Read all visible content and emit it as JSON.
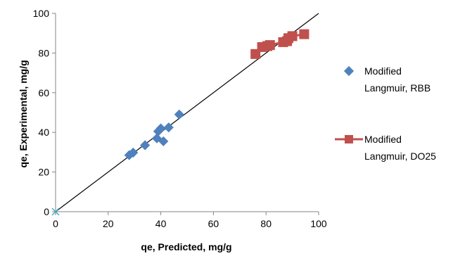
{
  "chart_data": {
    "type": "scatter",
    "xlabel": "qe, Predicted, mg/g",
    "ylabel": "qe, Experimental, mg/g",
    "xlim": [
      0,
      100
    ],
    "ylim": [
      0,
      100
    ],
    "xticks": [
      0,
      20,
      40,
      60,
      80,
      100
    ],
    "yticks": [
      0,
      20,
      40,
      60,
      80,
      100
    ],
    "grid": false,
    "legend_position": "right",
    "reference_line": {
      "x": [
        0,
        100
      ],
      "y": [
        0,
        100
      ],
      "color": "#000000"
    },
    "origin_marker": {
      "x": 0,
      "y": 0,
      "color": "#4bacc6"
    },
    "series": [
      {
        "name_lines": [
          "Modified",
          "Langmuir, RBB"
        ],
        "marker": "diamond",
        "color": "#4f81bd",
        "line": false,
        "points": [
          [
            28,
            28.5
          ],
          [
            29.5,
            29.8
          ],
          [
            34,
            33.5
          ],
          [
            38.5,
            37
          ],
          [
            39,
            40.5
          ],
          [
            40,
            42
          ],
          [
            41,
            35.5
          ],
          [
            43,
            42.5
          ],
          [
            47,
            49
          ]
        ]
      },
      {
        "name_lines": [
          "Modified",
          "Langmuir, DO25"
        ],
        "marker": "square",
        "color": "#c0504d",
        "line": true,
        "points": [
          [
            76,
            79.5
          ],
          [
            78.5,
            83
          ],
          [
            80.5,
            83.5
          ],
          [
            81.5,
            84
          ],
          [
            86.5,
            85.5
          ],
          [
            88,
            86
          ],
          [
            88.5,
            87.5
          ],
          [
            90,
            88.5
          ],
          [
            94.5,
            89.5
          ]
        ]
      }
    ]
  }
}
